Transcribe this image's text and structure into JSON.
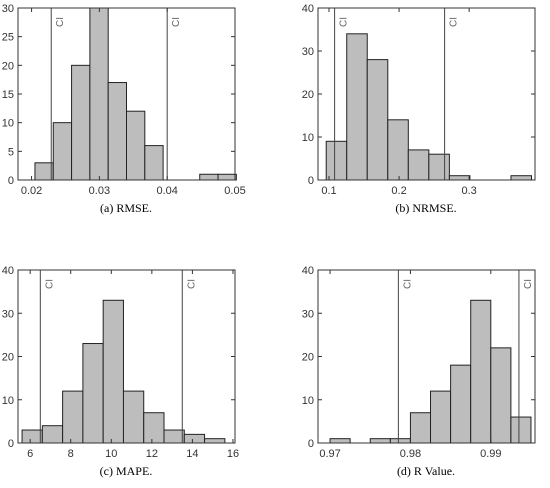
{
  "chart_data": [
    {
      "type": "histogram",
      "caption": "(a) RMSE.",
      "bins": [
        0.0205,
        0.0232,
        0.0259,
        0.0286,
        0.0313,
        0.034,
        0.0367,
        0.0394,
        0.0421,
        0.0448,
        0.0475,
        0.0502
      ],
      "counts": [
        3,
        10,
        20,
        30,
        17,
        12,
        6,
        0,
        0,
        1,
        1
      ],
      "xlim": [
        0.018,
        0.05
      ],
      "xticks": [
        0.02,
        0.03,
        0.04,
        0.05
      ],
      "ylim": [
        0,
        30
      ],
      "yticks": [
        0,
        5,
        10,
        15,
        20,
        25,
        30
      ],
      "ci": [
        0.0229,
        0.04
      ],
      "ci_label": "CI",
      "color": "#bdbdbd"
    },
    {
      "type": "histogram",
      "caption": "(b) NRMSE.",
      "bins": [
        0.096,
        0.1253,
        0.1546,
        0.1839,
        0.2132,
        0.2425,
        0.2718,
        0.3011,
        0.3304,
        0.3597,
        0.389
      ],
      "counts": [
        9,
        34,
        28,
        14,
        7,
        6,
        1,
        0,
        0,
        1
      ],
      "xlim": [
        0.0843,
        0.394
      ],
      "xticks": [
        0.1,
        0.2,
        0.3
      ],
      "ylim": [
        0,
        40
      ],
      "yticks": [
        0,
        10,
        20,
        30,
        40
      ],
      "ci": [
        0.108,
        0.265
      ],
      "ci_label": "CI",
      "color": "#bdbdbd"
    },
    {
      "type": "histogram",
      "caption": "(c) MAPE.",
      "bins": [
        5.6,
        6.6,
        7.6,
        8.6,
        9.6,
        10.6,
        11.6,
        12.6,
        13.6,
        14.6,
        15.6
      ],
      "counts": [
        3,
        4,
        12,
        23,
        33,
        12,
        7,
        3,
        2,
        1
      ],
      "xlim": [
        5.4,
        16.1
      ],
      "xticks": [
        6,
        8,
        10,
        12,
        14,
        16
      ],
      "ylim": [
        0,
        40
      ],
      "yticks": [
        0,
        10,
        20,
        30,
        40
      ],
      "ci": [
        6.5,
        13.5
      ],
      "ci_label": "CI",
      "color": "#bdbdbd"
    },
    {
      "type": "histogram",
      "caption": "(d) R Value.",
      "bins": [
        0.97,
        0.9725,
        0.975,
        0.9775,
        0.98,
        0.9825,
        0.985,
        0.9875,
        0.99,
        0.9925,
        0.995
      ],
      "counts": [
        1,
        0,
        1,
        1,
        7,
        12,
        18,
        33,
        22,
        6
      ],
      "xlim": [
        0.9685,
        0.9955
      ],
      "xticks": [
        0.97,
        0.98,
        0.99
      ],
      "ylim": [
        0,
        40
      ],
      "yticks": [
        0,
        10,
        20,
        30,
        40
      ],
      "ci": [
        0.9785,
        0.9935
      ],
      "ci_label": "CI",
      "color": "#bdbdbd"
    }
  ]
}
